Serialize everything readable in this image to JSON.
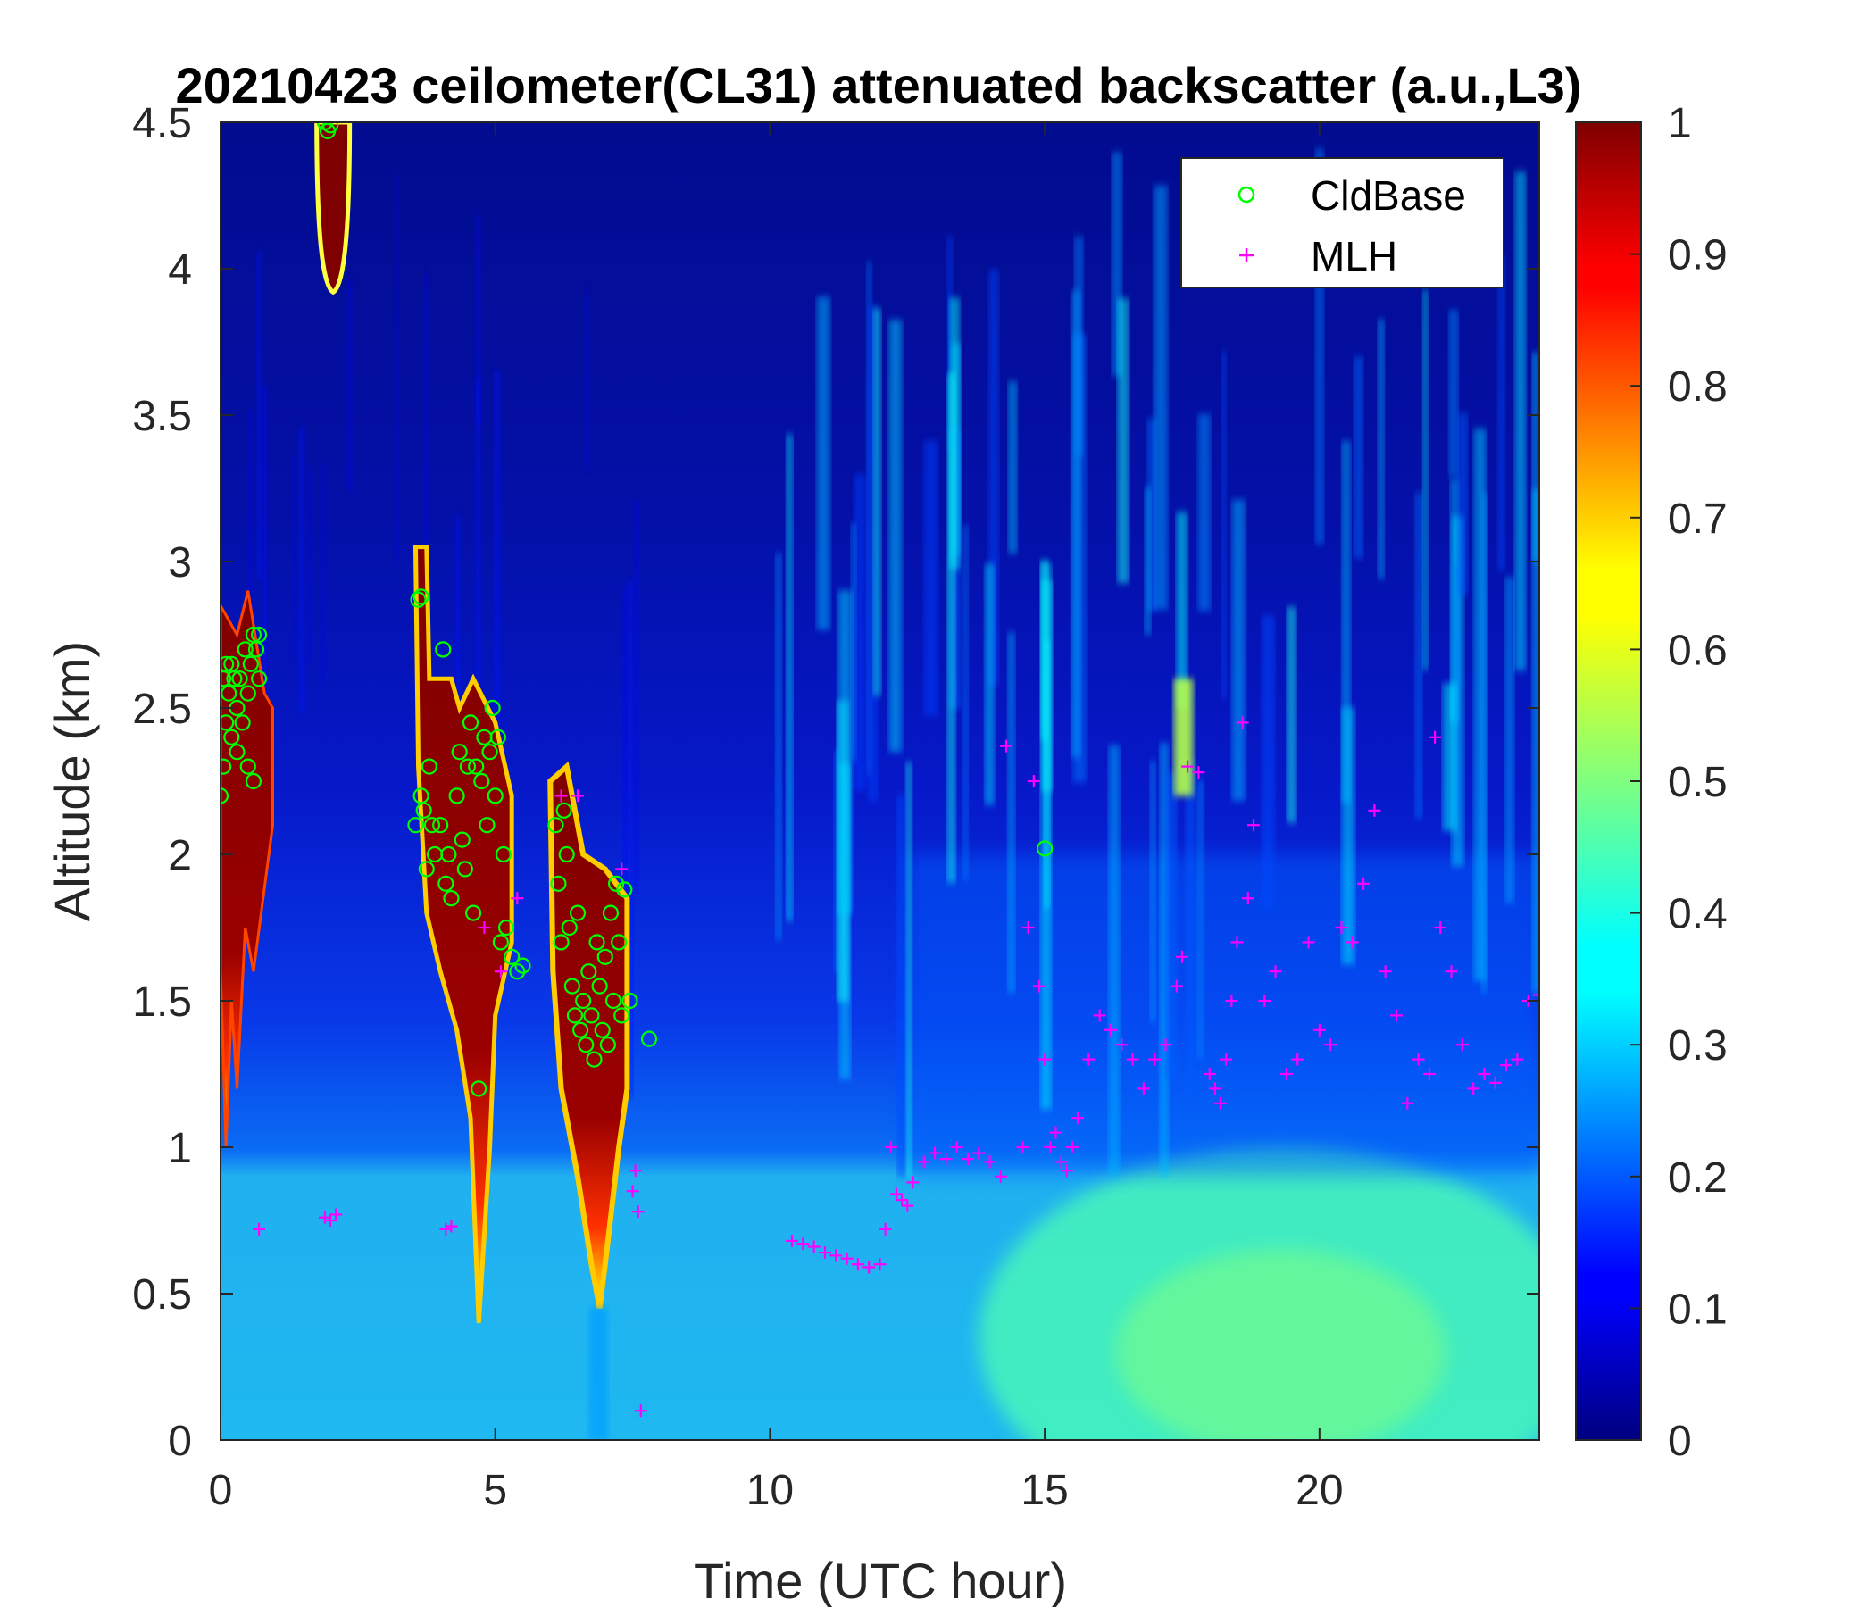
{
  "chart_data": {
    "type": "heatmap",
    "title": "20210423 ceilometer(CL31) attenuated backscatter (a.u.,L3)",
    "xlabel": "Time (UTC hour)",
    "ylabel": "Altitude (km)",
    "xlim": [
      0,
      24
    ],
    "ylim": [
      0,
      4.5
    ],
    "x_ticks": [
      "0",
      "5",
      "10",
      "15",
      "20"
    ],
    "x_tick_values": [
      0,
      5,
      10,
      15,
      20
    ],
    "y_ticks": [
      "0",
      "0.5",
      "1",
      "1.5",
      "2",
      "2.5",
      "3",
      "3.5",
      "4",
      "4.5"
    ],
    "y_tick_values": [
      0,
      0.5,
      1,
      1.5,
      2,
      2.5,
      3,
      3.5,
      4,
      4.5
    ],
    "colorbar": {
      "colormap": "jet",
      "range": [
        0,
        1
      ],
      "ticks": [
        "0",
        "0.1",
        "0.2",
        "0.3",
        "0.4",
        "0.5",
        "0.6",
        "0.7",
        "0.8",
        "0.9",
        "1"
      ],
      "tick_values": [
        0,
        0.1,
        0.2,
        0.3,
        0.4,
        0.5,
        0.6,
        0.7,
        0.8,
        0.9,
        1
      ]
    },
    "legend": {
      "placement": "top-right",
      "entries": [
        {
          "name": "CldBase",
          "marker": "circle",
          "color": "#00ff00"
        },
        {
          "name": "MLH",
          "marker": "plus",
          "color": "#ff00ff"
        }
      ]
    },
    "background_features": [
      {
        "description": "near-surface aerosol layer",
        "t": [
          0,
          24
        ],
        "z": [
          0,
          1.0
        ],
        "value": 0.33
      },
      {
        "description": "afternoon boundary layer",
        "t": [
          16,
          22
        ],
        "z": [
          0,
          0.8
        ],
        "value": 0.45
      },
      {
        "description": "cloud cluster A",
        "t": [
          0,
          1
        ],
        "z": [
          1.4,
          2.8
        ],
        "value": 1.0
      },
      {
        "description": "elevated cloud",
        "t": [
          1.8,
          2.3
        ],
        "z": [
          3.9,
          4.5
        ],
        "value": 1.0
      },
      {
        "description": "cloud cluster B",
        "t": [
          3.6,
          5.3
        ],
        "z": [
          0.7,
          3.0
        ],
        "value": 1.0
      },
      {
        "description": "cloud cluster C",
        "t": [
          6.0,
          7.4
        ],
        "z": [
          0.5,
          2.2
        ],
        "value": 1.0
      },
      {
        "description": "cloud patch",
        "t": [
          17.3,
          17.7
        ],
        "z": [
          2.2,
          2.6
        ],
        "value": 0.55
      }
    ],
    "series": [
      {
        "name": "CldBase",
        "marker": "circle",
        "color": "#00ff00",
        "points": [
          [
            0.0,
            2.2
          ],
          [
            0.05,
            2.3
          ],
          [
            0.05,
            2.6
          ],
          [
            0.1,
            2.45
          ],
          [
            0.1,
            2.65
          ],
          [
            0.15,
            2.55
          ],
          [
            0.2,
            2.4
          ],
          [
            0.2,
            2.65
          ],
          [
            0.25,
            2.6
          ],
          [
            0.3,
            2.5
          ],
          [
            0.3,
            2.35
          ],
          [
            0.35,
            2.6
          ],
          [
            0.4,
            2.45
          ],
          [
            0.45,
            2.7
          ],
          [
            0.5,
            2.55
          ],
          [
            0.5,
            2.3
          ],
          [
            0.55,
            2.65
          ],
          [
            0.6,
            2.75
          ],
          [
            0.6,
            2.25
          ],
          [
            0.65,
            2.7
          ],
          [
            0.7,
            2.6
          ],
          [
            0.7,
            2.75
          ],
          [
            1.9,
            4.5
          ],
          [
            1.95,
            4.47
          ],
          [
            2.0,
            4.49
          ],
          [
            3.55,
            2.1
          ],
          [
            3.6,
            2.87
          ],
          [
            3.65,
            2.88
          ],
          [
            3.65,
            2.2
          ],
          [
            3.7,
            2.15
          ],
          [
            3.75,
            1.95
          ],
          [
            3.8,
            2.3
          ],
          [
            3.85,
            2.1
          ],
          [
            3.9,
            2.0
          ],
          [
            4.0,
            2.1
          ],
          [
            4.05,
            2.7
          ],
          [
            4.1,
            1.9
          ],
          [
            4.15,
            2.0
          ],
          [
            4.2,
            1.85
          ],
          [
            4.3,
            2.2
          ],
          [
            4.35,
            2.35
          ],
          [
            4.4,
            2.05
          ],
          [
            4.45,
            1.95
          ],
          [
            4.5,
            2.3
          ],
          [
            4.55,
            2.45
          ],
          [
            4.6,
            1.8
          ],
          [
            4.65,
            2.3
          ],
          [
            4.7,
            1.2
          ],
          [
            4.75,
            2.25
          ],
          [
            4.8,
            2.4
          ],
          [
            4.85,
            2.1
          ],
          [
            4.9,
            2.35
          ],
          [
            4.95,
            2.5
          ],
          [
            5.0,
            2.2
          ],
          [
            5.05,
            2.4
          ],
          [
            5.1,
            1.7
          ],
          [
            5.15,
            2.0
          ],
          [
            5.2,
            1.75
          ],
          [
            5.3,
            1.65
          ],
          [
            5.4,
            1.6
          ],
          [
            5.5,
            1.62
          ],
          [
            6.1,
            2.1
          ],
          [
            6.15,
            1.9
          ],
          [
            6.2,
            1.7
          ],
          [
            6.25,
            2.15
          ],
          [
            6.3,
            2.0
          ],
          [
            6.35,
            1.75
          ],
          [
            6.4,
            1.55
          ],
          [
            6.45,
            1.45
          ],
          [
            6.5,
            1.8
          ],
          [
            6.55,
            1.4
          ],
          [
            6.6,
            1.5
          ],
          [
            6.65,
            1.35
          ],
          [
            6.7,
            1.6
          ],
          [
            6.75,
            1.45
          ],
          [
            6.8,
            1.3
          ],
          [
            6.85,
            1.7
          ],
          [
            6.9,
            1.55
          ],
          [
            6.95,
            1.4
          ],
          [
            7.0,
            1.65
          ],
          [
            7.05,
            1.35
          ],
          [
            7.1,
            1.8
          ],
          [
            7.15,
            1.5
          ],
          [
            7.2,
            1.9
          ],
          [
            7.25,
            1.7
          ],
          [
            7.3,
            1.45
          ],
          [
            7.35,
            1.88
          ],
          [
            7.45,
            1.5
          ],
          [
            7.8,
            1.37
          ],
          [
            15.0,
            2.02
          ]
        ]
      },
      {
        "name": "MLH",
        "marker": "plus",
        "color": "#ff00ff",
        "points": [
          [
            0.0,
            2.5
          ],
          [
            0.7,
            0.72
          ],
          [
            1.9,
            0.76
          ],
          [
            2.0,
            0.75
          ],
          [
            2.1,
            0.77
          ],
          [
            4.1,
            0.72
          ],
          [
            4.2,
            0.73
          ],
          [
            4.8,
            1.75
          ],
          [
            5.1,
            1.6
          ],
          [
            5.4,
            1.85
          ],
          [
            6.2,
            2.2
          ],
          [
            6.5,
            2.2
          ],
          [
            7.3,
            1.95
          ],
          [
            7.5,
            0.85
          ],
          [
            7.55,
            0.92
          ],
          [
            7.6,
            0.78
          ],
          [
            7.65,
            0.1
          ],
          [
            10.4,
            0.68
          ],
          [
            10.6,
            0.67
          ],
          [
            10.8,
            0.66
          ],
          [
            11.0,
            0.64
          ],
          [
            11.2,
            0.63
          ],
          [
            11.4,
            0.62
          ],
          [
            11.6,
            0.6
          ],
          [
            11.8,
            0.59
          ],
          [
            12.0,
            0.6
          ],
          [
            12.1,
            0.72
          ],
          [
            12.2,
            1.0
          ],
          [
            12.3,
            0.84
          ],
          [
            12.4,
            0.82
          ],
          [
            12.5,
            0.8
          ],
          [
            12.6,
            0.88
          ],
          [
            12.8,
            0.95
          ],
          [
            13.0,
            0.98
          ],
          [
            13.2,
            0.96
          ],
          [
            13.4,
            1.0
          ],
          [
            13.6,
            0.96
          ],
          [
            13.8,
            0.98
          ],
          [
            14.0,
            0.95
          ],
          [
            14.2,
            0.9
          ],
          [
            14.3,
            2.37
          ],
          [
            14.6,
            1.0
          ],
          [
            14.7,
            1.75
          ],
          [
            14.8,
            2.25
          ],
          [
            14.9,
            1.55
          ],
          [
            15.0,
            1.3
          ],
          [
            15.1,
            1.0
          ],
          [
            15.2,
            1.05
          ],
          [
            15.3,
            0.95
          ],
          [
            15.4,
            0.92
          ],
          [
            15.5,
            1.0
          ],
          [
            15.6,
            1.1
          ],
          [
            15.8,
            1.3
          ],
          [
            16.0,
            1.45
          ],
          [
            16.2,
            1.4
          ],
          [
            16.4,
            1.35
          ],
          [
            16.6,
            1.3
          ],
          [
            16.8,
            1.2
          ],
          [
            17.0,
            1.3
          ],
          [
            17.2,
            1.35
          ],
          [
            17.4,
            1.55
          ],
          [
            17.5,
            1.65
          ],
          [
            17.6,
            2.3
          ],
          [
            17.8,
            2.28
          ],
          [
            18.0,
            1.25
          ],
          [
            18.1,
            1.2
          ],
          [
            18.2,
            1.15
          ],
          [
            18.3,
            1.3
          ],
          [
            18.4,
            1.5
          ],
          [
            18.5,
            1.7
          ],
          [
            18.6,
            2.45
          ],
          [
            18.7,
            1.85
          ],
          [
            18.8,
            2.1
          ],
          [
            19.0,
            1.5
          ],
          [
            19.2,
            1.6
          ],
          [
            19.4,
            1.25
          ],
          [
            19.6,
            1.3
          ],
          [
            19.8,
            1.7
          ],
          [
            20.0,
            1.4
          ],
          [
            20.2,
            1.35
          ],
          [
            20.4,
            1.75
          ],
          [
            20.6,
            1.7
          ],
          [
            20.8,
            1.9
          ],
          [
            21.0,
            2.15
          ],
          [
            21.2,
            1.6
          ],
          [
            21.4,
            1.45
          ],
          [
            21.6,
            1.15
          ],
          [
            21.8,
            1.3
          ],
          [
            22.0,
            1.25
          ],
          [
            22.1,
            2.4
          ],
          [
            22.2,
            1.75
          ],
          [
            22.4,
            1.6
          ],
          [
            22.6,
            1.35
          ],
          [
            22.8,
            1.2
          ],
          [
            23.0,
            1.25
          ],
          [
            23.2,
            1.22
          ],
          [
            23.4,
            1.28
          ],
          [
            23.6,
            1.3
          ],
          [
            23.8,
            1.5
          ],
          [
            24.0,
            1.52
          ]
        ]
      }
    ]
  }
}
